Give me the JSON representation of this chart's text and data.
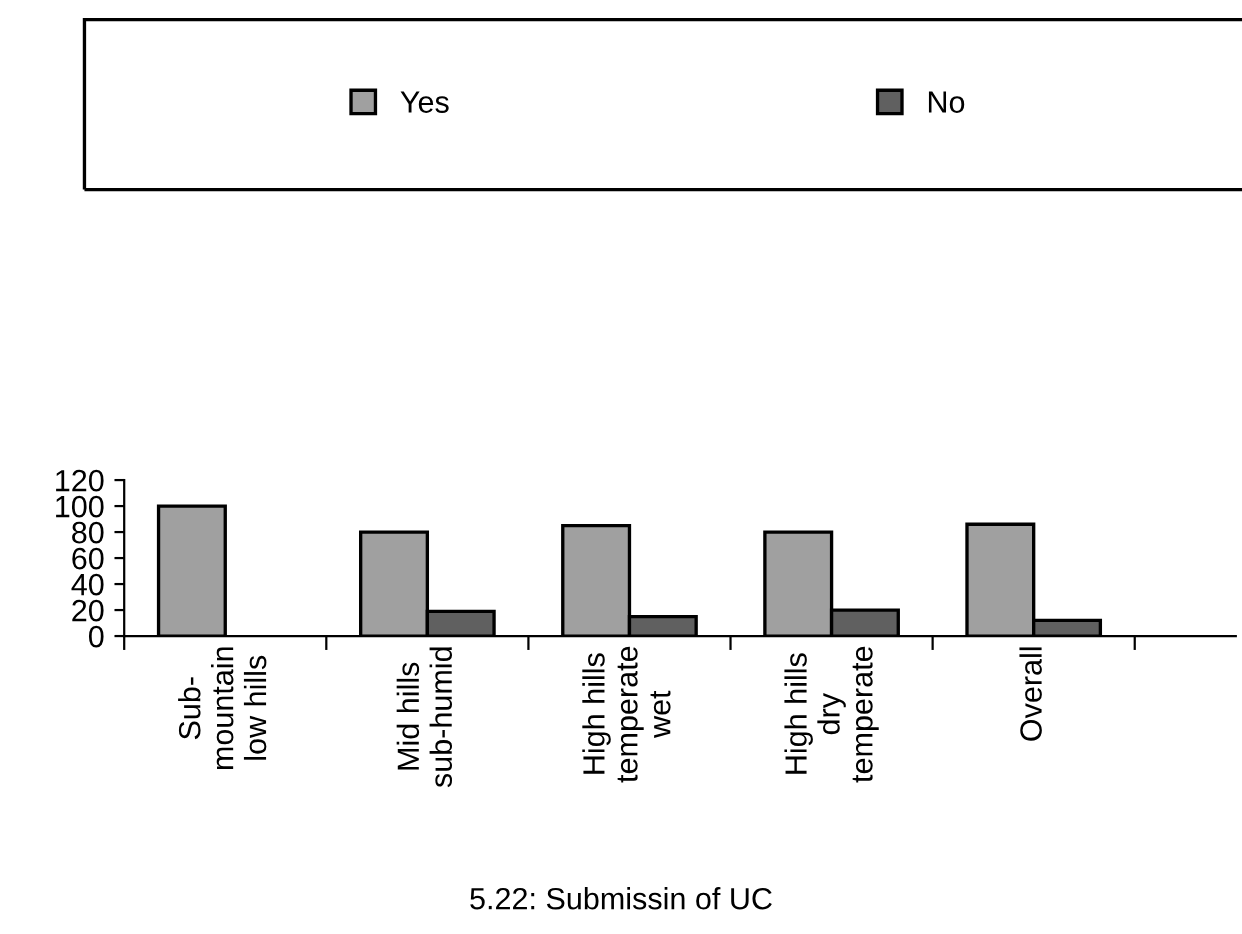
{
  "chart_data": {
    "type": "bar",
    "title": "5.22: Submissin of UC",
    "categories": [
      "Sub-\nmountain\nlow hills",
      "Mid hills\nsub-humid",
      "High hills\ntemperate\nwet",
      "High hills\ndry\ntemperate",
      "Overall"
    ],
    "series": [
      {
        "name": "Yes",
        "color": "#a0a0a0",
        "values": [
          100,
          80,
          85,
          80,
          86
        ]
      },
      {
        "name": "No",
        "color": "#606060",
        "values": [
          null,
          19,
          15,
          20,
          12
        ]
      }
    ],
    "ylim": [
      0,
      120
    ],
    "yticks": [
      0,
      20,
      40,
      60,
      80,
      100,
      120
    ],
    "grid": false,
    "legend": "top"
  }
}
